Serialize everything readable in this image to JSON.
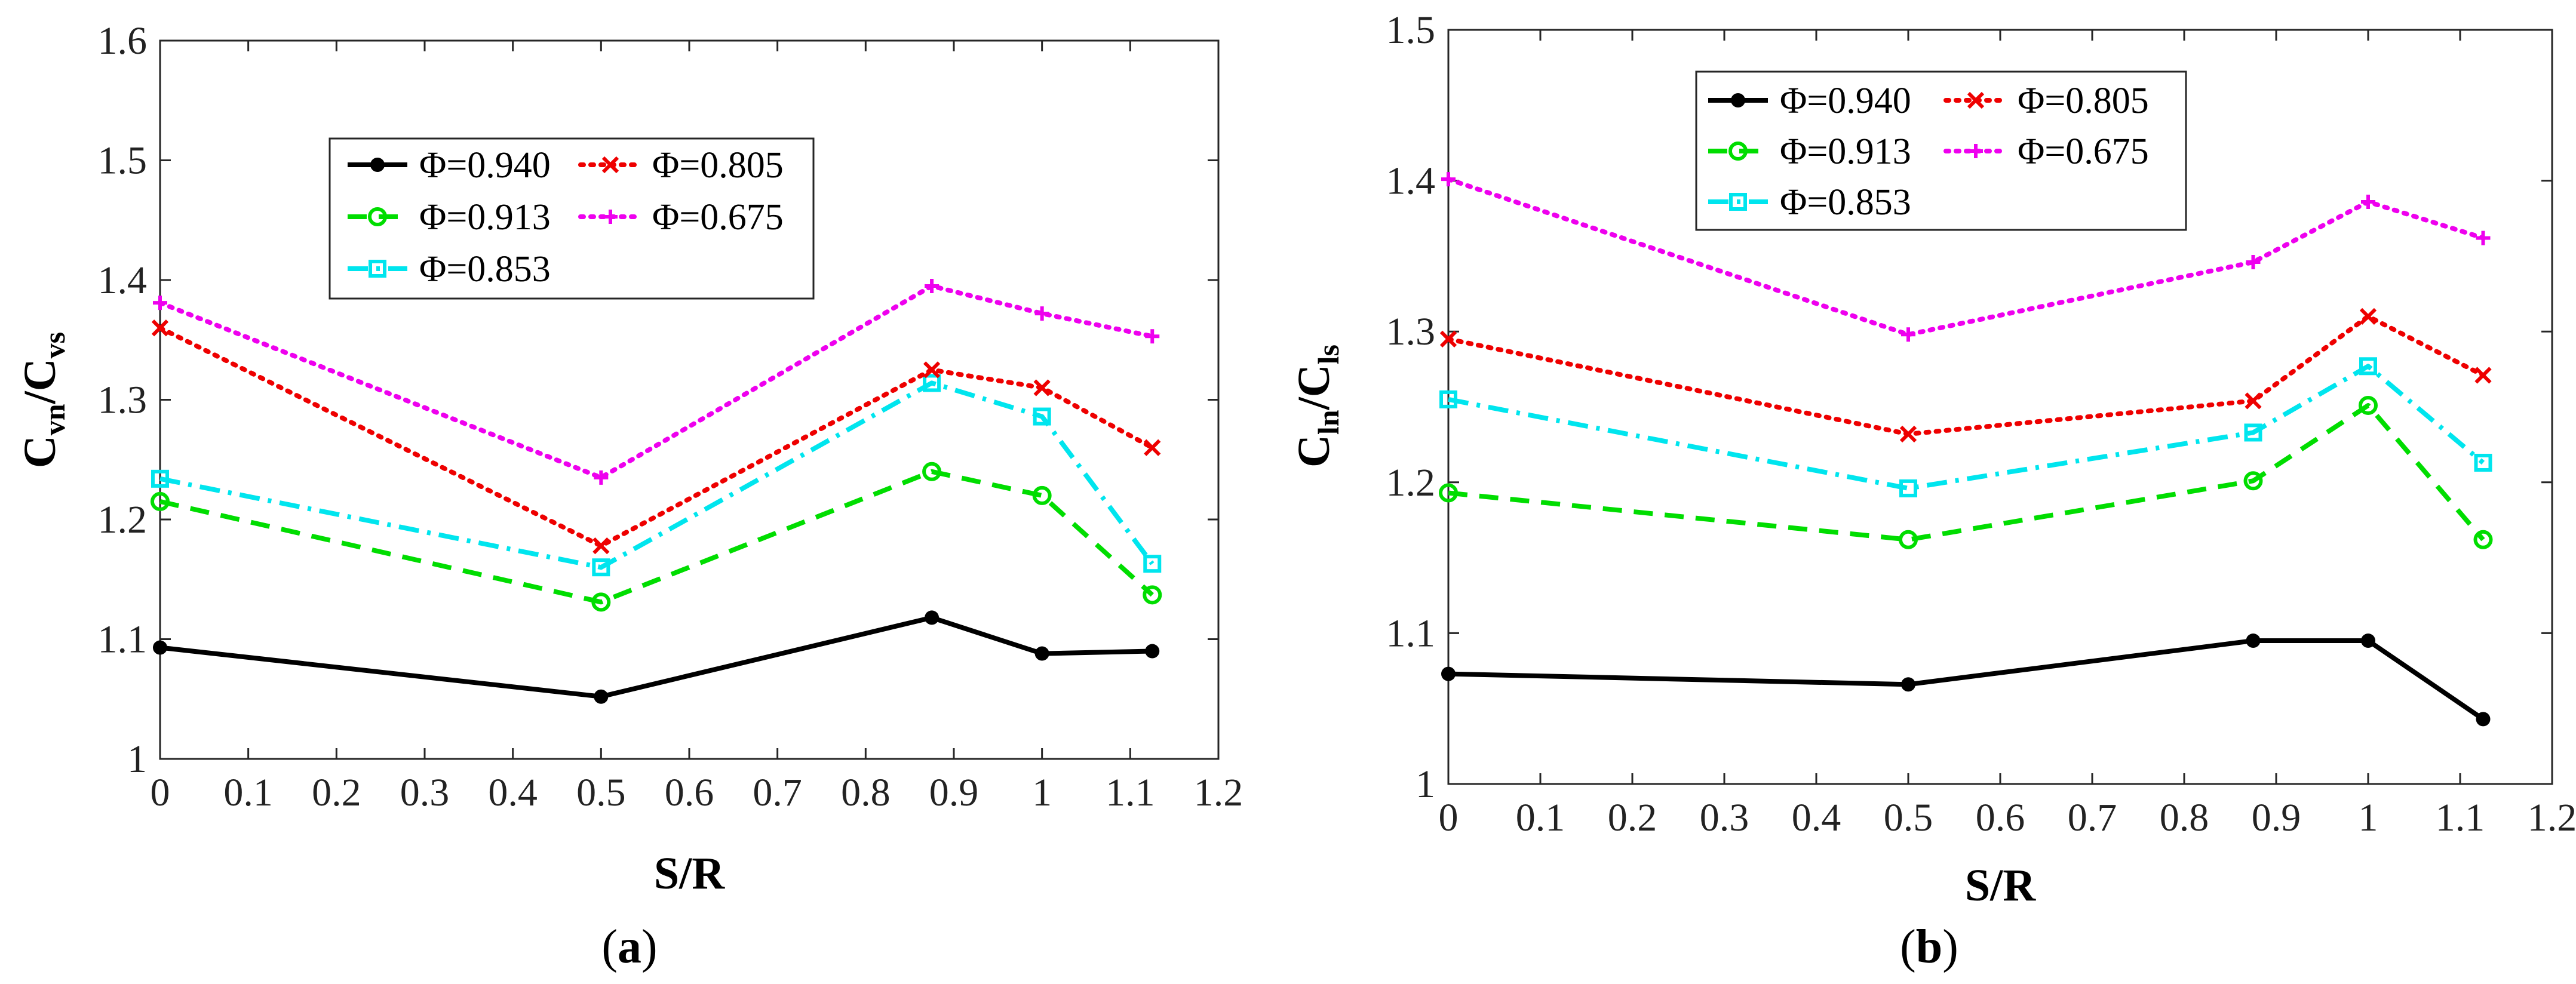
{
  "chart_data": [
    {
      "type": "line",
      "caption_pre": "(",
      "caption_letter": "a",
      "caption_post": ")",
      "xlabel": "S/R",
      "ylabel": {
        "main1": "C",
        "sub1": "vn",
        "slash": "/",
        "main2": "C",
        "sub2": "vs"
      },
      "xlim": [
        0,
        1.2
      ],
      "ylim": [
        1,
        1.6
      ],
      "xticks": [
        0,
        0.1,
        0.2,
        0.3,
        0.4,
        0.5,
        0.6,
        0.7,
        0.8,
        0.9,
        1,
        1.1,
        1.2
      ],
      "xtick_labels": [
        "0",
        "0.1",
        "0.2",
        "0.3",
        "0.4",
        "0.5",
        "0.6",
        "0.7",
        "0.8",
        "0.9",
        "1",
        "1.1",
        "1.2"
      ],
      "yticks": [
        1,
        1.1,
        1.2,
        1.3,
        1.4,
        1.5,
        1.6
      ],
      "ytick_labels": [
        "1",
        "1.1",
        "1.2",
        "1.3",
        "1.4",
        "1.5",
        "1.6"
      ],
      "x": [
        0,
        0.5,
        0.875,
        1.0,
        1.125
      ],
      "legend_position": "upper-left-inside",
      "series": [
        {
          "name": "Φ=0.940",
          "color": "#000000",
          "dash": "solid",
          "marker": "dot",
          "values": [
            1.093,
            1.052,
            1.118,
            1.088,
            1.09
          ]
        },
        {
          "name": "Φ=0.913",
          "color": "#00dd00",
          "dash": "dashed",
          "marker": "circle",
          "values": [
            1.215,
            1.131,
            1.24,
            1.22,
            1.137
          ]
        },
        {
          "name": "Φ=0.853",
          "color": "#00e5ee",
          "dash": "dashdot",
          "marker": "square",
          "values": [
            1.234,
            1.16,
            1.314,
            1.286,
            1.163
          ]
        },
        {
          "name": "Φ=0.805",
          "color": "#ee0000",
          "dash": "dotted",
          "marker": "x",
          "values": [
            1.36,
            1.178,
            1.325,
            1.31,
            1.26
          ]
        },
        {
          "name": "Φ=0.675",
          "color": "#ee00ee",
          "dash": "dotted",
          "marker": "plus",
          "values": [
            1.381,
            1.235,
            1.395,
            1.372,
            1.353
          ]
        }
      ]
    },
    {
      "type": "line",
      "caption_pre": "(",
      "caption_letter": "b",
      "caption_post": ")",
      "xlabel": "S/R",
      "ylabel": {
        "main1": "C",
        "sub1": "ln",
        "slash": "/",
        "main2": "C",
        "sub2": "ls"
      },
      "xlim": [
        0,
        1.2
      ],
      "ylim": [
        1,
        1.5
      ],
      "xticks": [
        0,
        0.1,
        0.2,
        0.3,
        0.4,
        0.5,
        0.6,
        0.7,
        0.8,
        0.9,
        1,
        1.1,
        1.2
      ],
      "xtick_labels": [
        "0",
        "0.1",
        "0.2",
        "0.3",
        "0.4",
        "0.5",
        "0.6",
        "0.7",
        "0.8",
        "0.9",
        "1",
        "1.1",
        "1.2"
      ],
      "yticks": [
        1,
        1.1,
        1.2,
        1.3,
        1.4,
        1.5
      ],
      "ytick_labels": [
        "1",
        "1.1",
        "1.2",
        "1.3",
        "1.4",
        "1.5"
      ],
      "x": [
        0,
        0.5,
        0.875,
        1.0,
        1.125
      ],
      "legend_position": "upper-left-inside",
      "series": [
        {
          "name": "Φ=0.940",
          "color": "#000000",
          "dash": "solid",
          "marker": "dot",
          "values": [
            1.073,
            1.066,
            1.095,
            1.095,
            1.043
          ]
        },
        {
          "name": "Φ=0.913",
          "color": "#00dd00",
          "dash": "dashed",
          "marker": "circle",
          "values": [
            1.193,
            1.162,
            1.201,
            1.251,
            1.162
          ]
        },
        {
          "name": "Φ=0.853",
          "color": "#00e5ee",
          "dash": "dashdot",
          "marker": "square",
          "values": [
            1.255,
            1.196,
            1.233,
            1.277,
            1.213
          ]
        },
        {
          "name": "Φ=0.805",
          "color": "#ee0000",
          "dash": "dotted",
          "marker": "x",
          "values": [
            1.295,
            1.232,
            1.254,
            1.31,
            1.271
          ]
        },
        {
          "name": "Φ=0.675",
          "color": "#ee00ee",
          "dash": "dotted",
          "marker": "plus",
          "values": [
            1.401,
            1.298,
            1.346,
            1.386,
            1.362
          ]
        }
      ]
    }
  ]
}
